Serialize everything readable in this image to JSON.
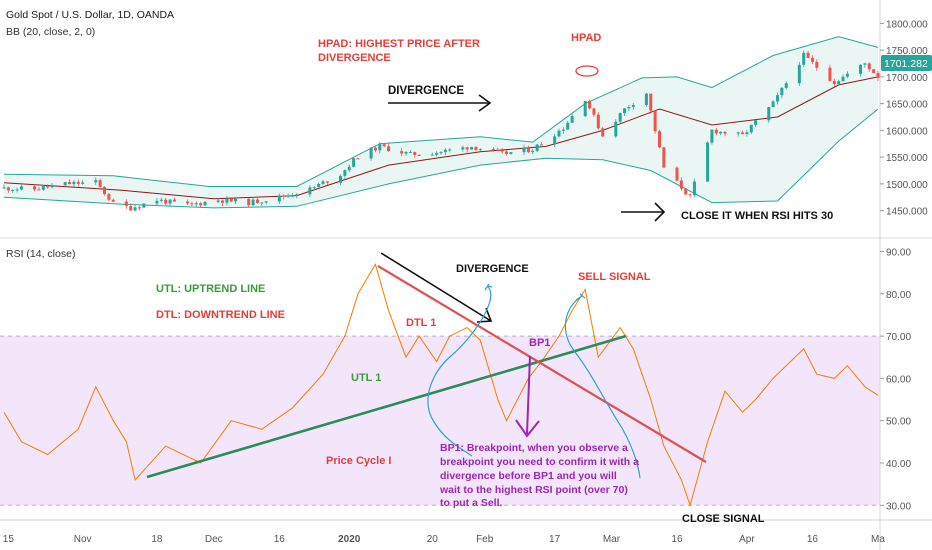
{
  "header": {
    "symbol": "Gold Spot / U.S. Dollar, 1D, OANDA",
    "bb_indicator": "BB (20, close, 2, 0)",
    "rsi_indicator": "RSI (14, close)"
  },
  "price_badge": "1701.282",
  "colors": {
    "bull": "#26a69a",
    "bear": "#ef5350",
    "bb_band": "#26a69a",
    "bb_fill": "#eaf6f3",
    "bb_basis": "#8b1a1a",
    "rsi_line": "#f57c00",
    "rsi_zone": "#f3e6fb",
    "uptrend": "#2e8b57",
    "downtrend": "#e05050",
    "annotation_red": "#e0403a",
    "annotation_green": "#3c9a3c",
    "annotation_purple": "#9c27b0",
    "sketch_blue": "#2aa3c8",
    "badge_bg": "#26a69a"
  },
  "annotations": {
    "hpad_def": [
      "HPAD: HIGHEST PRICE AFTER",
      "DIVERGENCE"
    ],
    "hpad": "HPAD",
    "divergence_top": "DIVERGENCE",
    "close_when": "CLOSE IT WHEN RSI HITS 30",
    "divergence_rsi": "DIVERGENCE",
    "sell_signal": "SELL SIGNAL",
    "utl_def": "UTL: UPTREND LINE",
    "dtl_def": "DTL: DOWNTREND  LINE",
    "dtl1": "DTL 1",
    "utl1": "UTL 1",
    "bp1": "BP1",
    "price_cycle": "Price Cycle I",
    "bp1_note": [
      "BP1: Breakpoint, when you observe a",
      "breakpoint you need to confirm it with a",
      "divergence before BP1 and you will",
      "wait to the highest RSI point (over 70)",
      "to put a Sell."
    ],
    "close_signal": "CLOSE SIGNAL"
  },
  "chart_data": [
    {
      "type": "candlestick",
      "title": "Gold Spot / U.S. Dollar, 1D, OANDA",
      "overlay": "BB (20, close, 2, 0)",
      "ylim": [
        1410,
        1825
      ],
      "y_ticks": [
        "1800.000",
        "1750.000",
        "1700.000",
        "1650.000",
        "1600.000",
        "1550.000",
        "1500.000",
        "1450.000"
      ],
      "x_ticks": [
        "15",
        "Nov",
        "18",
        "Dec",
        "16",
        "2020",
        "20",
        "Feb",
        "17",
        "Mar",
        "16",
        "Apr",
        "16",
        "Ma"
      ],
      "x_range": [
        "2019-10-14",
        "2020-05-01"
      ],
      "last_price": 1701.282,
      "close_path": [
        [
          "2019-10-14",
          1492
        ],
        [
          "2019-10-21",
          1490
        ],
        [
          "2019-10-28",
          1500
        ],
        [
          "2019-11-04",
          1503
        ],
        [
          "2019-11-08",
          1463
        ],
        [
          "2019-11-12",
          1455
        ],
        [
          "2019-11-18",
          1470
        ],
        [
          "2019-11-25",
          1460
        ],
        [
          "2019-12-02",
          1470
        ],
        [
          "2019-12-09",
          1465
        ],
        [
          "2019-12-16",
          1475
        ],
        [
          "2019-12-23",
          1490
        ],
        [
          "2019-12-30",
          1518
        ],
        [
          "2020-01-03",
          1552
        ],
        [
          "2020-01-08",
          1570
        ],
        [
          "2020-01-15",
          1555
        ],
        [
          "2020-01-22",
          1560
        ],
        [
          "2020-01-29",
          1570
        ],
        [
          "2020-02-05",
          1556
        ],
        [
          "2020-02-12",
          1565
        ],
        [
          "2020-02-19",
          1605
        ],
        [
          "2020-02-24",
          1660
        ],
        [
          "2020-02-28",
          1590
        ],
        [
          "2020-03-04",
          1640
        ],
        [
          "2020-03-09",
          1670
        ],
        [
          "2020-03-13",
          1530
        ],
        [
          "2020-03-19",
          1475
        ],
        [
          "2020-03-24",
          1600
        ],
        [
          "2020-03-31",
          1590
        ],
        [
          "2020-04-07",
          1650
        ],
        [
          "2020-04-14",
          1740
        ],
        [
          "2020-04-21",
          1690
        ],
        [
          "2020-04-28",
          1725
        ],
        [
          "2020-05-01",
          1701
        ]
      ],
      "bb_upper": [
        [
          "2019-10-14",
          1518
        ],
        [
          "2019-11-08",
          1515
        ],
        [
          "2019-11-30",
          1495
        ],
        [
          "2019-12-20",
          1495
        ],
        [
          "2020-01-08",
          1575
        ],
        [
          "2020-01-31",
          1588
        ],
        [
          "2020-02-12",
          1578
        ],
        [
          "2020-02-24",
          1650
        ],
        [
          "2020-03-08",
          1698
        ],
        [
          "2020-03-16",
          1700
        ],
        [
          "2020-03-24",
          1680
        ],
        [
          "2020-04-07",
          1740
        ],
        [
          "2020-04-22",
          1775
        ],
        [
          "2020-05-01",
          1755
        ]
      ],
      "bb_basis": [
        [
          "2019-10-14",
          1502
        ],
        [
          "2019-11-10",
          1488
        ],
        [
          "2019-12-01",
          1472
        ],
        [
          "2019-12-20",
          1478
        ],
        [
          "2020-01-10",
          1535
        ],
        [
          "2020-01-31",
          1560
        ],
        [
          "2020-02-15",
          1570
        ],
        [
          "2020-02-28",
          1600
        ],
        [
          "2020-03-12",
          1640
        ],
        [
          "2020-03-24",
          1610
        ],
        [
          "2020-04-08",
          1625
        ],
        [
          "2020-04-22",
          1685
        ],
        [
          "2020-05-01",
          1700
        ]
      ],
      "bb_lower": [
        [
          "2019-10-14",
          1475
        ],
        [
          "2019-11-10",
          1462
        ],
        [
          "2019-12-01",
          1455
        ],
        [
          "2019-12-20",
          1458
        ],
        [
          "2020-01-10",
          1500
        ],
        [
          "2020-01-31",
          1535
        ],
        [
          "2020-02-15",
          1548
        ],
        [
          "2020-02-28",
          1545
        ],
        [
          "2020-03-10",
          1525
        ],
        [
          "2020-03-24",
          1465
        ],
        [
          "2020-04-08",
          1468
        ],
        [
          "2020-04-22",
          1580
        ],
        [
          "2020-05-01",
          1640
        ]
      ]
    },
    {
      "type": "line",
      "title": "RSI (14, close)",
      "ylim": [
        27,
        92
      ],
      "y_ticks": [
        "90.00",
        "80.00",
        "70.00",
        "60.00",
        "50.00",
        "40.00",
        "30.00"
      ],
      "overbought": 70,
      "oversold": 30,
      "series": [
        {
          "values": [
            [
              "2019-10-14",
              52
            ],
            [
              "2019-10-18",
              45
            ],
            [
              "2019-10-24",
              42
            ],
            [
              "2019-10-31",
              48
            ],
            [
              "2019-11-04",
              58
            ],
            [
              "2019-11-08",
              50
            ],
            [
              "2019-11-11",
              45
            ],
            [
              "2019-11-13",
              36
            ],
            [
              "2019-11-20",
              44
            ],
            [
              "2019-11-28",
              40
            ],
            [
              "2019-12-05",
              50
            ],
            [
              "2019-12-12",
              48
            ],
            [
              "2019-12-19",
              53
            ],
            [
              "2019-12-26",
              61
            ],
            [
              "2019-12-31",
              70
            ],
            [
              "2020-01-03",
              80
            ],
            [
              "2020-01-07",
              87
            ],
            [
              "2020-01-10",
              76
            ],
            [
              "2020-01-14",
              65
            ],
            [
              "2020-01-17",
              70
            ],
            [
              "2020-01-21",
              64
            ],
            [
              "2020-01-24",
              70
            ],
            [
              "2020-01-28",
              72
            ],
            [
              "2020-01-31",
              69
            ],
            [
              "2020-02-04",
              55
            ],
            [
              "2020-02-06",
              50
            ],
            [
              "2020-02-11",
              60
            ],
            [
              "2020-02-14",
              64
            ],
            [
              "2020-02-18",
              70
            ],
            [
              "2020-02-21",
              76
            ],
            [
              "2020-02-24",
              81
            ],
            [
              "2020-02-27",
              65
            ],
            [
              "2020-03-03",
              72
            ],
            [
              "2020-03-06",
              67
            ],
            [
              "2020-03-10",
              55
            ],
            [
              "2020-03-13",
              44
            ],
            [
              "2020-03-17",
              36
            ],
            [
              "2020-03-19",
              30
            ],
            [
              "2020-03-23",
              45
            ],
            [
              "2020-03-27",
              57
            ],
            [
              "2020-03-31",
              52
            ],
            [
              "2020-04-03",
              55
            ],
            [
              "2020-04-07",
              60
            ],
            [
              "2020-04-09",
              62
            ],
            [
              "2020-04-14",
              67
            ],
            [
              "2020-04-17",
              61
            ],
            [
              "2020-04-21",
              60
            ],
            [
              "2020-04-24",
              63
            ],
            [
              "2020-04-28",
              58
            ],
            [
              "2020-05-01",
              56
            ]
          ]
        }
      ]
    }
  ]
}
